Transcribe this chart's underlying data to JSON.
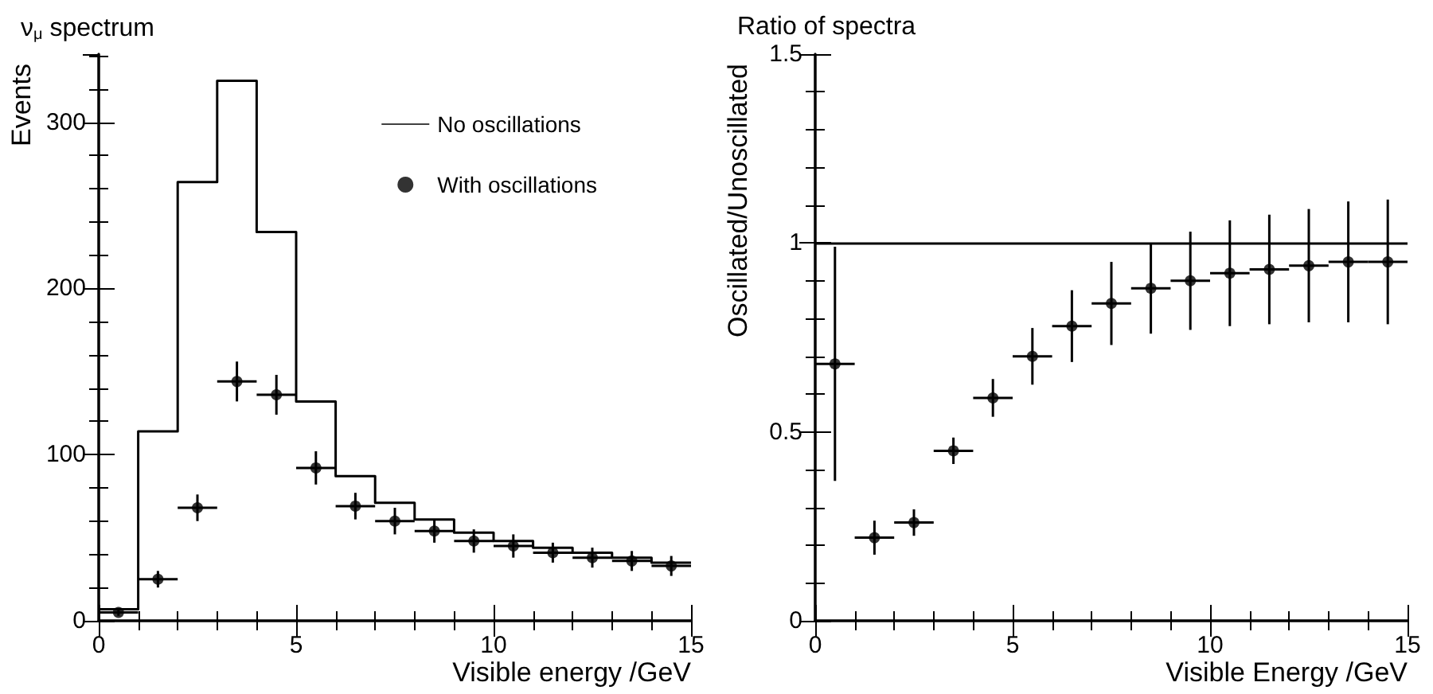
{
  "chart_data": [
    {
      "type": "histogram",
      "title": "ν$_{μ}$ spectrum",
      "xlabel": "Visible energy /GeV",
      "ylabel": "Events",
      "xlim": [
        0,
        15
      ],
      "xticks": [
        0,
        5,
        10,
        15
      ],
      "ylim": [
        0,
        341
      ],
      "yticks": [
        0,
        100,
        200,
        300
      ],
      "legend": "top right",
      "series": [
        {
          "name": "No oscillations",
          "color": "#000000",
          "bins": [
            0,
            1,
            2,
            3,
            4,
            5,
            6,
            7,
            8,
            9,
            10,
            11,
            12,
            13,
            14,
            15
          ],
          "values": [
            7,
            114,
            264,
            325,
            234,
            132,
            87,
            71,
            61,
            53,
            48,
            44,
            41,
            38,
            35
          ]
        },
        {
          "name": "With oscillations",
          "type": "scatter",
          "color": "#000000",
          "marker": "circle",
          "x": [
            0.5,
            1.5,
            2.5,
            3.5,
            4.5,
            5.5,
            6.5,
            7.5,
            8.5,
            9.5,
            10.5,
            11.5,
            12.5,
            13.5,
            14.5
          ],
          "values": [
            5,
            25,
            68,
            144,
            136,
            92,
            69,
            60,
            54,
            48,
            45,
            41,
            38,
            36,
            33
          ],
          "errors": [
            2,
            5,
            8,
            12,
            12,
            10,
            8,
            8,
            7,
            7,
            7,
            6,
            6,
            6,
            6
          ],
          "xerrors": [
            0.5,
            0.5,
            0.5,
            0.5,
            0.5,
            0.5,
            0.5,
            0.5,
            0.5,
            0.5,
            0.5,
            0.5,
            0.5,
            0.5,
            0.5
          ]
        }
      ]
    },
    {
      "type": "scatter",
      "title": "Ratio of spectra",
      "xlabel": "Visible Energy /GeV",
      "ylabel": "Oscillated/Unoscillated",
      "xlim": [
        0,
        15
      ],
      "xticks": [
        0,
        5,
        10,
        15
      ],
      "ylim": [
        0,
        1.5
      ],
      "yticks": [
        0,
        0.5,
        1,
        1.5
      ],
      "ref_lines": [
        {
          "axis": "y",
          "value": 1,
          "color": "#000000"
        }
      ],
      "series": [
        {
          "color": "#000000",
          "marker": "circle",
          "x": [
            0.5,
            1.5,
            2.5,
            3.5,
            4.5,
            5.5,
            6.5,
            7.5,
            8.5,
            9.5,
            10.5,
            11.5,
            12.5,
            13.5,
            14.5
          ],
          "values": [
            0.68,
            0.22,
            0.26,
            0.45,
            0.59,
            0.7,
            0.78,
            0.84,
            0.88,
            0.9,
            0.92,
            0.93,
            0.94,
            0.95,
            0.95
          ],
          "errors": [
            0.31,
            0.045,
            0.035,
            0.035,
            0.05,
            0.075,
            0.095,
            0.11,
            0.12,
            0.13,
            0.14,
            0.145,
            0.15,
            0.16,
            0.165
          ],
          "xerrors": [
            0.5,
            0.5,
            0.5,
            0.5,
            0.5,
            0.5,
            0.5,
            0.5,
            0.5,
            0.5,
            0.5,
            0.5,
            0.5,
            0.5,
            0.5
          ]
        }
      ]
    }
  ]
}
